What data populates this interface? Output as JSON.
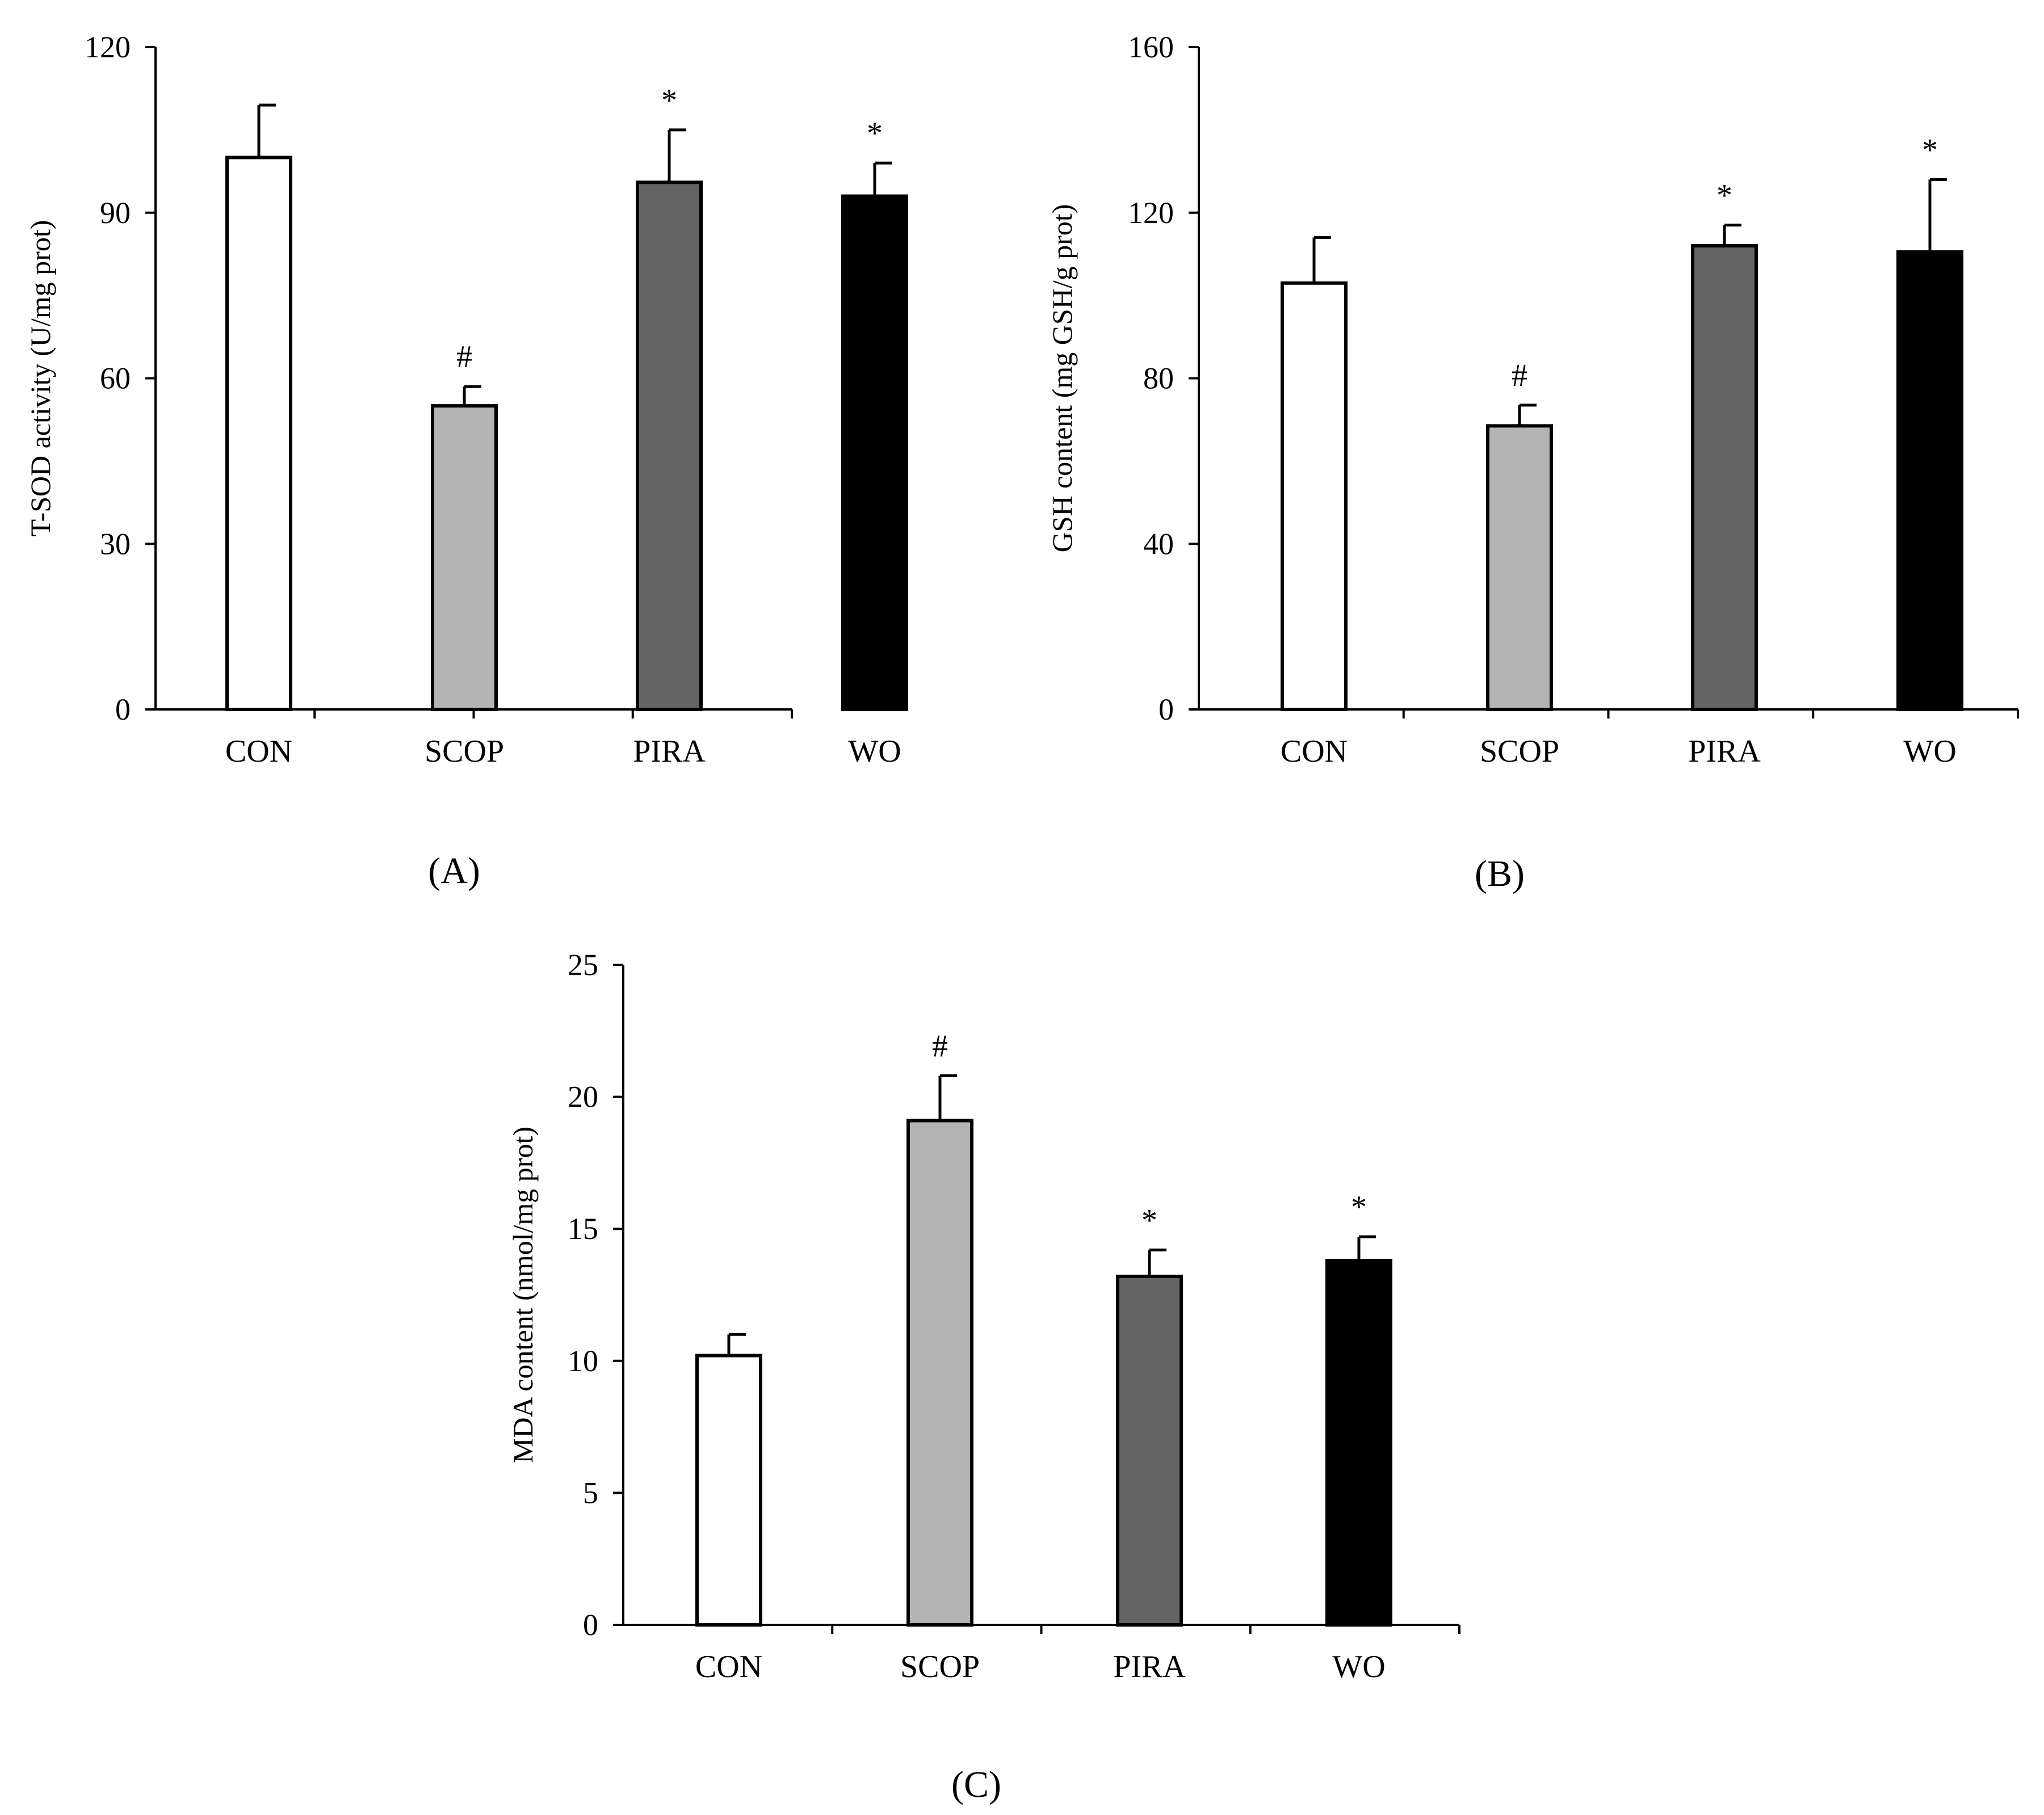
{
  "figure": {
    "panels": [
      {
        "letter": "A",
        "label": "(A)"
      },
      {
        "letter": "B",
        "label": "(B)"
      },
      {
        "letter": "C",
        "label": "(C)"
      }
    ]
  },
  "chart_data": [
    {
      "type": "bar",
      "panel": "(A)",
      "title": "",
      "xlabel": "",
      "ylabel": "T-SOD activity (U/mg prot)",
      "ylim": [
        0,
        120
      ],
      "yticks": [
        0,
        30,
        60,
        90,
        120
      ],
      "grid": false,
      "categories": [
        "CON",
        "SCOP",
        "PIRA",
        "WO"
      ],
      "values": [
        100,
        55,
        95.5,
        93
      ],
      "errors": [
        9.5,
        3.5,
        9.5,
        6
      ],
      "annotations": [
        "",
        "#",
        "*",
        "*"
      ],
      "fills": [
        "#ffffff",
        "#b4b4b4",
        "#646464",
        "#000000"
      ]
    },
    {
      "type": "bar",
      "panel": "(B)",
      "title": "",
      "xlabel": "",
      "ylabel": "GSH content (mg GSH/g prot)",
      "ylim": [
        0,
        160
      ],
      "yticks": [
        0,
        40,
        80,
        120,
        160
      ],
      "grid": false,
      "categories": [
        "CON",
        "SCOP",
        "PIRA",
        "WO"
      ],
      "values": [
        103,
        68.5,
        112,
        110.5
      ],
      "errors": [
        11,
        5,
        5,
        17.5
      ],
      "annotations": [
        "",
        "#",
        "*",
        "*"
      ],
      "fills": [
        "#ffffff",
        "#b4b4b4",
        "#646464",
        "#000000"
      ]
    },
    {
      "type": "bar",
      "panel": "(C)",
      "title": "",
      "xlabel": "",
      "ylabel": "MDA content (nmol/mg prot)",
      "ylim": [
        0,
        25
      ],
      "yticks": [
        0,
        5,
        10,
        15,
        20,
        25
      ],
      "grid": false,
      "categories": [
        "CON",
        "SCOP",
        "PIRA",
        "WO"
      ],
      "values": [
        10.2,
        19.1,
        13.2,
        13.8
      ],
      "errors": [
        0.8,
        1.7,
        1.0,
        0.9
      ],
      "annotations": [
        "",
        "#",
        "*",
        "*"
      ],
      "fills": [
        "#ffffff",
        "#b4b4b4",
        "#646464",
        "#000000"
      ]
    }
  ]
}
